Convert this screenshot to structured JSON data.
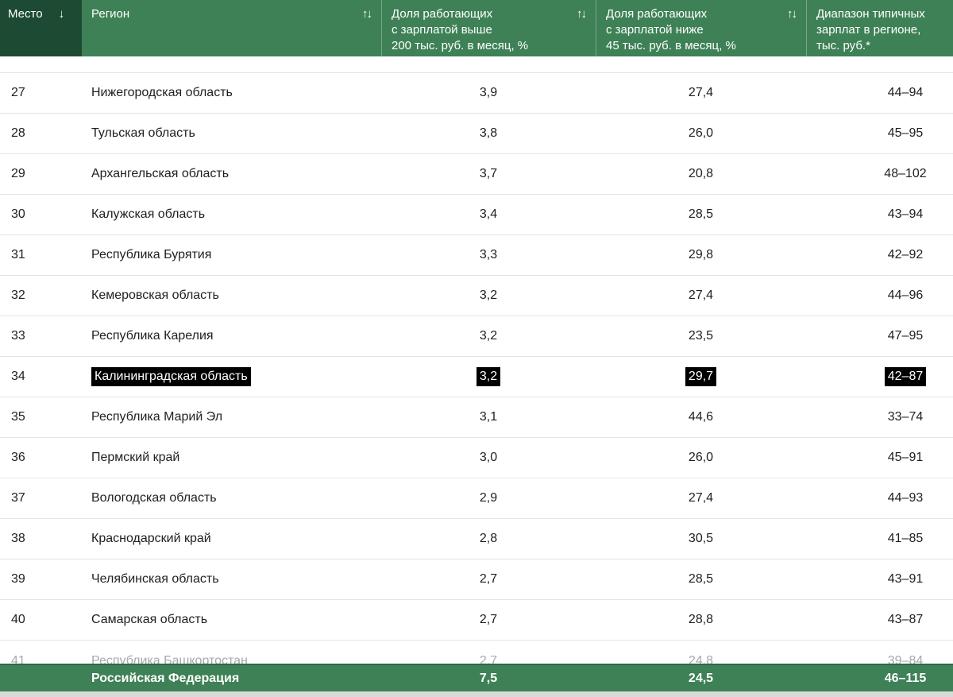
{
  "icons": {
    "sort_desc": "↓",
    "sort_both": "↑↓"
  },
  "colors": {
    "header_green": "#3e8156",
    "active_sort_column_green": "#1d4a33",
    "footer_green": "#3e8156",
    "footer_top_border": "#2f6b47",
    "row_divider": "#e4e4e4",
    "body_text": "#1f1f1f",
    "header_text": "#ffffff",
    "highlight_bg": "#000000",
    "highlight_text": "#ffffff",
    "faded_partial_row": "#a8a8a8",
    "bottom_strip": "#dadada"
  },
  "table": {
    "columns": [
      {
        "lines": [
          "Место"
        ],
        "sort": "desc"
      },
      {
        "lines": [
          "Регион"
        ],
        "sort": "both"
      },
      {
        "lines": [
          "Доля работающих",
          "с зарплатой выше",
          "200 тыс. руб. в месяц, %"
        ],
        "sort": "both"
      },
      {
        "lines": [
          "Доля работающих",
          "с зарплатой ниже",
          "45 тыс. руб. в месяц, %"
        ],
        "sort": "both"
      },
      {
        "lines": [
          "Диапазон типичных",
          "зарплат в регионе,",
          "тыс. руб.*"
        ],
        "sort": "none"
      }
    ],
    "rows": [
      {
        "rank": "27",
        "region": "Нижегородская область",
        "above200": "3,9",
        "below45": "27,4",
        "range": "44–94",
        "highlighted": false
      },
      {
        "rank": "28",
        "region": "Тульская область",
        "above200": "3,8",
        "below45": "26,0",
        "range": "45–95",
        "highlighted": false
      },
      {
        "rank": "29",
        "region": "Архангельская область",
        "above200": "3,7",
        "below45": "20,8",
        "range": "48–102",
        "highlighted": false
      },
      {
        "rank": "30",
        "region": "Калужская область",
        "above200": "3,4",
        "below45": "28,5",
        "range": "43–94",
        "highlighted": false
      },
      {
        "rank": "31",
        "region": "Республика Бурятия",
        "above200": "3,3",
        "below45": "29,8",
        "range": "42–92",
        "highlighted": false
      },
      {
        "rank": "32",
        "region": "Кемеровская область",
        "above200": "3,2",
        "below45": "27,4",
        "range": "44–96",
        "highlighted": false
      },
      {
        "rank": "33",
        "region": "Республика Карелия",
        "above200": "3,2",
        "below45": "23,5",
        "range": "47–95",
        "highlighted": false
      },
      {
        "rank": "34",
        "region": "Калининградская область",
        "above200": "3,2",
        "below45": "29,7",
        "range": "42–87",
        "highlighted": true
      },
      {
        "rank": "35",
        "region": "Республика Марий Эл",
        "above200": "3,1",
        "below45": "44,6",
        "range": "33–74",
        "highlighted": false
      },
      {
        "rank": "36",
        "region": "Пермский край",
        "above200": "3,0",
        "below45": "26,0",
        "range": "45–91",
        "highlighted": false
      },
      {
        "rank": "37",
        "region": "Вологодская область",
        "above200": "2,9",
        "below45": "27,4",
        "range": "44–93",
        "highlighted": false
      },
      {
        "rank": "38",
        "region": "Краснодарский край",
        "above200": "2,8",
        "below45": "30,5",
        "range": "41–85",
        "highlighted": false
      },
      {
        "rank": "39",
        "region": "Челябинская область",
        "above200": "2,7",
        "below45": "28,5",
        "range": "43–91",
        "highlighted": false
      },
      {
        "rank": "40",
        "region": "Самарская область",
        "above200": "2,7",
        "below45": "28,8",
        "range": "43–87",
        "highlighted": false
      },
      {
        "rank": "41",
        "region": "Республика Башкортостан",
        "above200": "2,7",
        "below45": "24,8",
        "range": "39–84",
        "highlighted": false,
        "partial": true
      }
    ],
    "footer": {
      "region": "Российская Федерация",
      "above200": "7,5",
      "below45": "24,5",
      "range": "46–115"
    }
  }
}
